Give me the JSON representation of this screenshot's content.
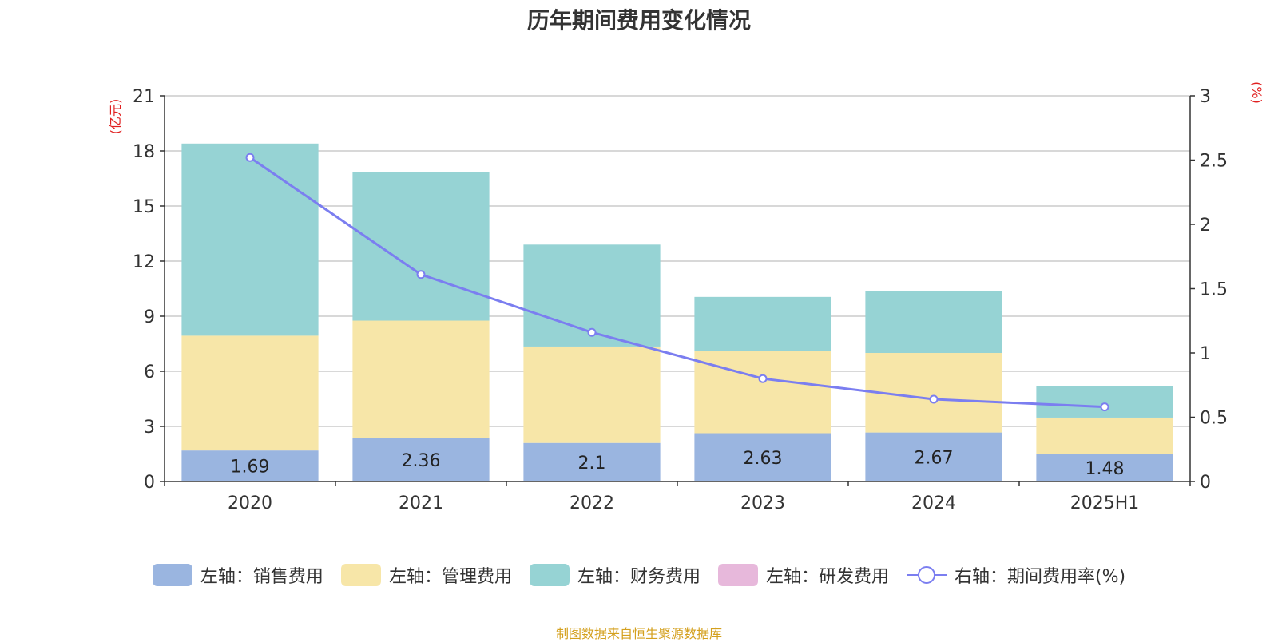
{
  "chart_data": {
    "type": "bar",
    "stacked": true,
    "title": "历年期间费用变化情况",
    "categories": [
      "2020",
      "2021",
      "2022",
      "2023",
      "2024",
      "2025H1"
    ],
    "left_axis": {
      "unit_label": "(亿元)",
      "ylim": [
        0,
        21
      ],
      "ticks": [
        "0",
        "3",
        "6",
        "9",
        "12",
        "15",
        "18",
        "21"
      ]
    },
    "right_axis": {
      "unit_label": "(%)",
      "ylim": [
        0,
        3
      ],
      "ticks": [
        "0",
        "0.5",
        "1",
        "1.5",
        "2",
        "2.5",
        "3"
      ]
    },
    "series": [
      {
        "name": "左轴：销售费用",
        "axis": "left",
        "kind": "bar",
        "color": "#9ab5e0",
        "values": [
          1.69,
          2.36,
          2.1,
          2.63,
          2.67,
          1.48
        ],
        "labels": [
          "1.69",
          "2.36",
          "2.1",
          "2.63",
          "2.67",
          "1.48"
        ]
      },
      {
        "name": "左轴：管理费用",
        "axis": "left",
        "kind": "bar",
        "color": "#f7e6a8",
        "values": [
          6.25,
          6.4,
          5.25,
          4.47,
          4.33,
          2.0
        ]
      },
      {
        "name": "左轴：财务费用",
        "axis": "left",
        "kind": "bar",
        "color": "#96d3d4",
        "values": [
          10.46,
          8.1,
          5.55,
          2.95,
          3.35,
          1.72
        ]
      },
      {
        "name": "左轴：研发费用",
        "axis": "left",
        "kind": "bar",
        "color": "#e7b8db",
        "values": [
          0,
          0,
          0,
          0,
          0,
          0
        ]
      },
      {
        "name": "右轴：期间费用率(%)",
        "axis": "right",
        "kind": "line",
        "color": "#7b7ef0",
        "values": [
          2.52,
          1.61,
          1.16,
          0.8,
          0.64,
          0.58
        ]
      }
    ],
    "legend": "bottom-center",
    "grid": true
  },
  "footer": {
    "source": "制图数据来自恒生聚源数据库"
  },
  "colors": {
    "axis_unit": "#e02020",
    "grid": "#cccccc",
    "source_text": "#d4a01e"
  }
}
